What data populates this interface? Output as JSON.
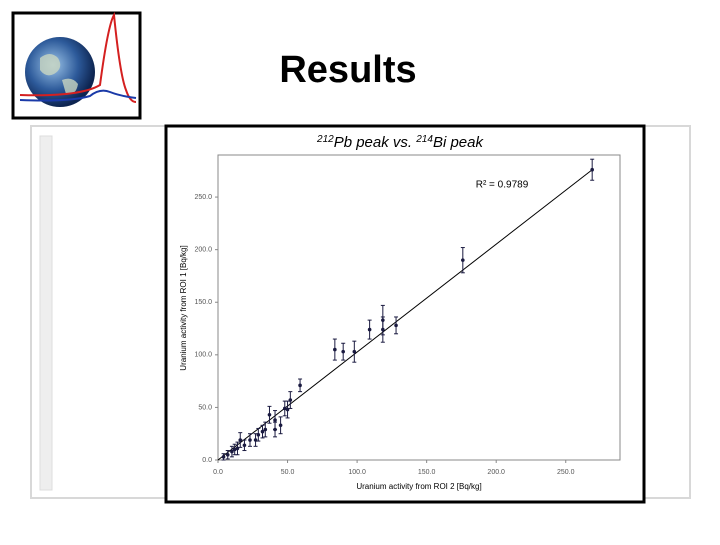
{
  "slide": {
    "title": "Results"
  },
  "chart_data": {
    "type": "scatter",
    "title": {
      "sup1": "212",
      "text1": "Pb peak vs. ",
      "sup2": "214",
      "text2": "Bi peak"
    },
    "annotation": "R² = 0.9789",
    "x_label": "Uranium activity from ROI 2 [Bq/kg]",
    "y_label": "Uranium activity from ROI 1 [Bq/kg]",
    "color": "#1a1a40",
    "x": [
      269,
      176,
      118.5,
      118.5,
      109,
      128,
      84,
      90,
      98,
      59,
      52,
      48,
      41,
      37,
      34,
      29,
      23,
      19,
      14,
      10,
      7,
      4,
      45,
      27,
      16,
      12,
      32,
      41,
      50
    ],
    "values": [
      276,
      190,
      133,
      124,
      124,
      128,
      105,
      103,
      103,
      71,
      57,
      49,
      38,
      43,
      29,
      24,
      19,
      14,
      11,
      8,
      5,
      3,
      33,
      19,
      19,
      10,
      27,
      29,
      48
    ],
    "y_err": [
      10,
      12,
      14,
      12,
      9,
      8,
      10,
      8,
      10,
      6,
      8,
      7,
      9,
      8,
      7,
      6,
      6,
      5,
      6,
      5,
      4,
      3,
      8,
      6,
      7,
      5,
      6,
      7,
      8
    ],
    "fit": {
      "x": [
        0,
        269
      ],
      "values": [
        0,
        276
      ]
    },
    "xlim": [
      0,
      289
    ],
    "ylim": [
      0,
      290
    ],
    "xticks": [
      {
        "value": 0,
        "label": "0.0"
      },
      {
        "value": 50,
        "label": "50.0"
      },
      {
        "value": 100,
        "label": "100.0"
      },
      {
        "value": 150,
        "label": "150.0"
      },
      {
        "value": 200,
        "label": "200.0"
      },
      {
        "value": 250,
        "label": "250.0"
      }
    ],
    "yticks": [
      {
        "value": 0,
        "label": "0.0"
      },
      {
        "value": 50,
        "label": "50.0"
      },
      {
        "value": 100,
        "label": "100.0"
      },
      {
        "value": 150,
        "label": "150.0"
      },
      {
        "value": 200,
        "label": "200.0"
      },
      {
        "value": 250,
        "label": "250.0"
      }
    ]
  }
}
